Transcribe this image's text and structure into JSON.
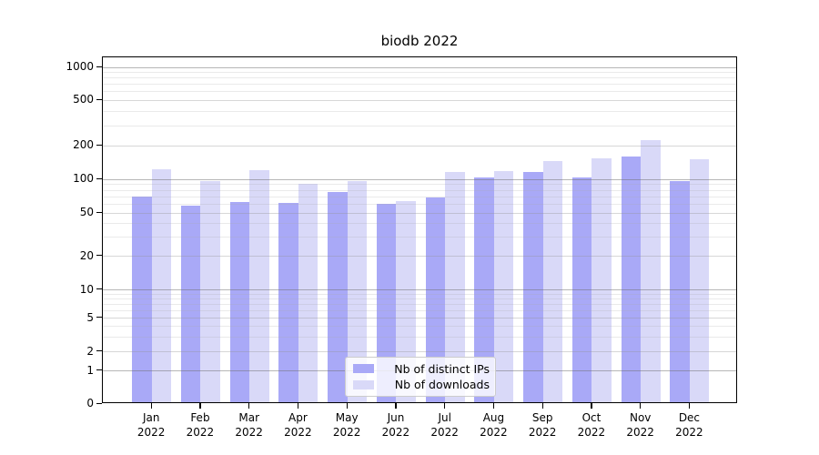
{
  "chart_data": {
    "type": "bar",
    "title": "biodb 2022",
    "x": {
      "months": [
        "Jan",
        "Feb",
        "Mar",
        "Apr",
        "May",
        "Jun",
        "Jul",
        "Aug",
        "Sep",
        "Oct",
        "Nov",
        "Dec"
      ],
      "year": "2022"
    },
    "series": [
      {
        "name": "Nb of distinct IPs",
        "color": "#a9a9f7",
        "values": [
          68,
          56,
          61,
          60,
          74,
          58,
          66,
          100,
          112,
          100,
          155,
          93
        ]
      },
      {
        "name": "Nb of downloads",
        "color": "#d9d9f8",
        "values": [
          118,
          94,
          116,
          88,
          94,
          62,
          112,
          115,
          140,
          150,
          215,
          145
        ]
      }
    ],
    "y_axis": {
      "scale": "symlog",
      "ticks": [
        0,
        1,
        2,
        5,
        10,
        20,
        50,
        100,
        200,
        500,
        1000
      ],
      "ylim": [
        0,
        1300
      ]
    },
    "legend": {
      "position": "lower center inside plot"
    },
    "grid": "on"
  }
}
